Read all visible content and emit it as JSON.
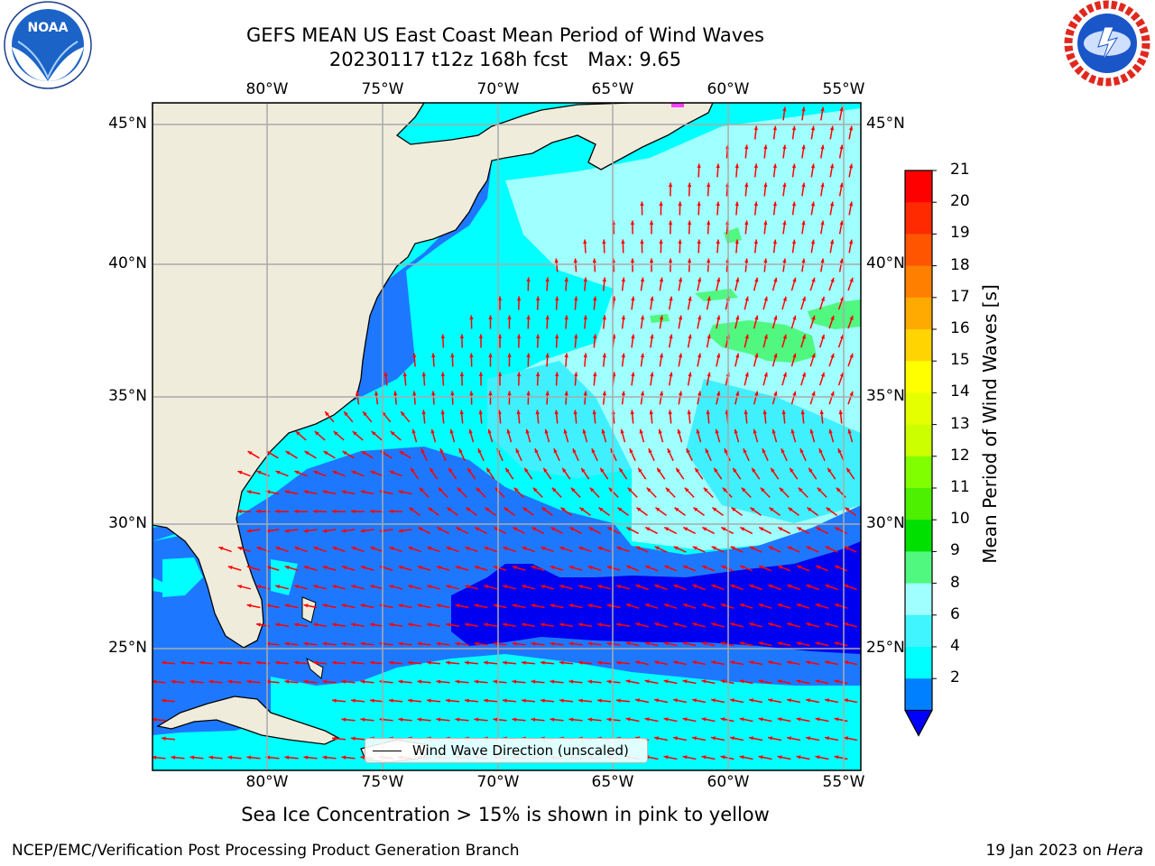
{
  "title_line1": "GEFS MEAN US East Coast Mean Period of Wind Waves",
  "title_line2_date": "20230117 t12z 168h fcst",
  "title_line2_max": "Max: 9.65",
  "subnote": "Sea Ice Concentration > 15% is shown in pink to yellow",
  "footer_left": "NCEP/EMC/Verification Post Processing Product Generation Branch",
  "footer_right_date": "19 Jan 2023 on",
  "footer_right_machine": "Hera",
  "legend_label": "Wind Wave Direction (unscaled)",
  "logos": {
    "left": "noaa-logo",
    "left_text": "NOAA",
    "left_ring_text": "NATIONAL OCEANIC AND ATMOSPHERIC ADMINISTRATION · U.S. DEPARTMENT OF COMMERCE",
    "right": "nws-logo",
    "right_ring_text": "NATIONAL WEATHER SERVICE"
  },
  "lon_labels": [
    "80°W",
    "75°W",
    "70°W",
    "65°W",
    "60°W",
    "55°W"
  ],
  "lat_labels": [
    "45°N",
    "40°N",
    "35°N",
    "30°N",
    "25°N"
  ],
  "colorbar": {
    "label": "Mean Period of Wind Waves [s]",
    "ticks": [
      "21",
      "20",
      "19",
      "18",
      "17",
      "16",
      "15",
      "14",
      "13",
      "12",
      "11",
      "10",
      "9",
      "8",
      "6",
      "4",
      "2"
    ],
    "colors": [
      "#ff0000",
      "#ff2a00",
      "#ff5500",
      "#ff8000",
      "#ffaa00",
      "#ffd400",
      "#ffff00",
      "#e6ff00",
      "#ccff00",
      "#80ff00",
      "#4cf000",
      "#00e000",
      "#50f880",
      "#a0ffff",
      "#40f5ff",
      "#00ffff",
      "#0080ff"
    ],
    "extend_color": "#0000ff"
  },
  "map": {
    "extent": {
      "lon": [
        -85,
        -54.3
      ],
      "lat": [
        20.2,
        46.0
      ]
    },
    "land_color": "#efecdc",
    "arrow_color": "#ff0000",
    "fill_colors": {
      "lt2": "#0000f0",
      "2to4": "#1e78ff",
      "4to6": "#00ffff",
      "6to8": "#40f0ff",
      "8to9": "#a0ffff",
      "9to10": "#50f880"
    }
  }
}
